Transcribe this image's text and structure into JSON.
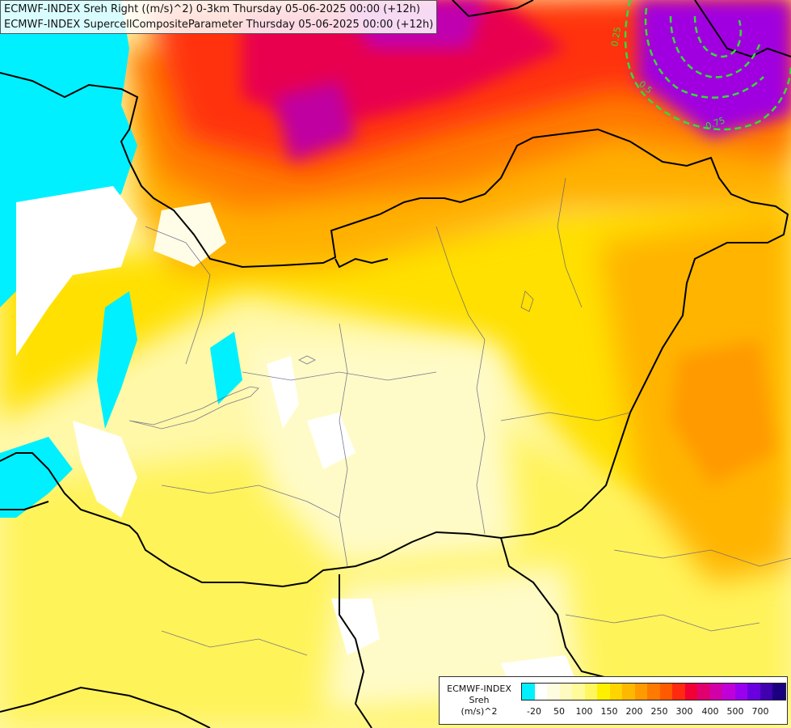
{
  "titles": {
    "line1": "ECMWF-INDEX Sreh Right ((m/s)^2) 0-3km Thursday 05-06-2025 00:00 (+12h)",
    "line2": "ECMWF-INDEX SupercellCompositeParameter Thursday 05-06-2025 00:00 (+12h)"
  },
  "legend": {
    "model": "ECMWF-INDEX",
    "field": "Sreh",
    "unit": "(m/s)^2",
    "colors": [
      "#00f0ff",
      "#ffffff",
      "#fffde0",
      "#fffbbf",
      "#fffa9a",
      "#fff660",
      "#fff000",
      "#ffd400",
      "#ffb800",
      "#ff9a00",
      "#ff7a00",
      "#ff5a00",
      "#ff2a10",
      "#f20035",
      "#e00070",
      "#d200a8",
      "#c000d8",
      "#9a00f0",
      "#6a00e0",
      "#4000b0",
      "#1a0080"
    ],
    "ticks": [
      "-20",
      "50",
      "100",
      "150",
      "200",
      "250",
      "300",
      "400",
      "500",
      "700"
    ]
  }
}
